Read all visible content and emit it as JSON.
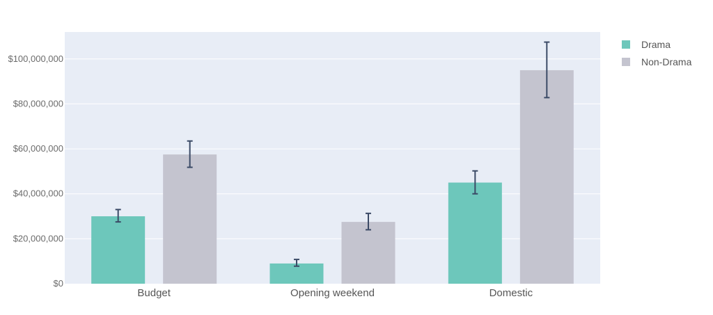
{
  "chart_data": {
    "type": "bar",
    "categories": [
      "Budget",
      "Opening weekend",
      "Domestic"
    ],
    "series": [
      {
        "name": "Drama",
        "values": [
          30000000,
          9000000,
          45000000
        ],
        "error_low": [
          27500000,
          7800000,
          40000000
        ],
        "error_high": [
          33000000,
          10800000,
          50200000
        ],
        "color": "#6dc7bb"
      },
      {
        "name": "Non-Drama",
        "values": [
          57500000,
          27500000,
          95000000
        ],
        "error_low": [
          51800000,
          24000000,
          82800000
        ],
        "error_high": [
          63500000,
          31300000,
          107500000
        ],
        "color": "#c4c4cf"
      }
    ],
    "ylim": [
      0,
      112000000
    ],
    "yticks": [
      0,
      20000000,
      40000000,
      60000000,
      80000000,
      100000000
    ],
    "ytick_labels": [
      "$0",
      "$20,000,000",
      "$40,000,000",
      "$60,000,000",
      "$80,000,000",
      "$100,000,000"
    ],
    "grid": true,
    "legend_position": "top-right",
    "plot_background": "#e8edf6",
    "error_bar_color": "#3b4a66",
    "title": "",
    "xlabel": "",
    "ylabel": ""
  }
}
